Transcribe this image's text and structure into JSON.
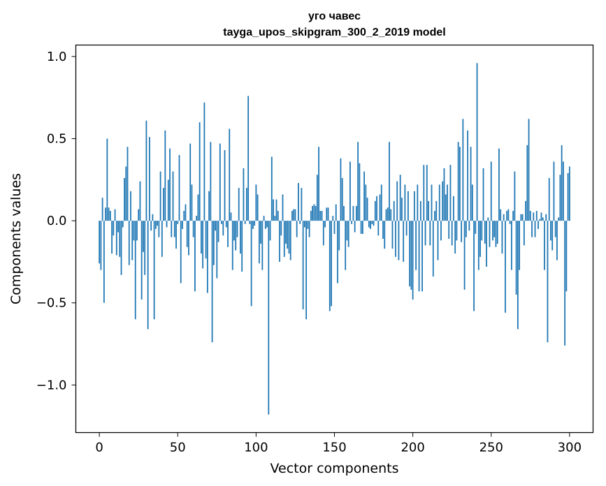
{
  "chart_data": {
    "type": "bar",
    "title": "уго чавес",
    "subtitle": "tayga_upos_skipgram_300_2_2019 model",
    "xlabel": "Vector components",
    "ylabel": "Components values",
    "xlim": [
      -15,
      315
    ],
    "ylim": [
      -1.29,
      1.07
    ],
    "xticks": [
      0,
      50,
      100,
      150,
      200,
      250,
      300
    ],
    "xtick_labels": [
      "0",
      "50",
      "100",
      "150",
      "200",
      "250",
      "300"
    ],
    "yticks": [
      -1.0,
      -0.5,
      0.0,
      0.5,
      1.0
    ],
    "ytick_labels": [
      "−1.0",
      "−0.5",
      "0.0",
      "0.5",
      "1.0"
    ],
    "bar_color": "#1f77b4",
    "grid": false,
    "values": [
      -0.26,
      -0.3,
      0.14,
      -0.5,
      0.08,
      0.5,
      0.08,
      0.06,
      -0.2,
      -0.09,
      0.07,
      -0.21,
      -0.07,
      -0.22,
      -0.33,
      -0.04,
      0.26,
      0.33,
      0.45,
      -0.27,
      0.18,
      -0.24,
      -0.12,
      -0.6,
      -0.12,
      0.07,
      0.24,
      -0.48,
      -0.19,
      -0.33,
      0.61,
      -0.66,
      0.51,
      -0.06,
      0.04,
      -0.6,
      -0.05,
      -0.03,
      -0.1,
      0.3,
      -0.22,
      0.2,
      0.55,
      -0.04,
      0.25,
      0.44,
      -0.1,
      0.3,
      -0.1,
      -0.17,
      -0.02,
      0.4,
      -0.38,
      -0.05,
      0.06,
      0.1,
      -0.16,
      -0.21,
      0.47,
      0.22,
      -0.1,
      -0.43,
      0.03,
      0.16,
      0.6,
      -0.2,
      -0.29,
      0.72,
      -0.23,
      -0.44,
      0.18,
      0.48,
      -0.74,
      -0.27,
      -0.06,
      -0.35,
      -0.13,
      0.47,
      -0.02,
      -0.09,
      0.43,
      -0.04,
      -0.16,
      0.56,
      0.05,
      -0.3,
      -0.12,
      -0.18,
      -0.1,
      0.2,
      -0.2,
      -0.31,
      0.32,
      -0.02,
      0.2,
      0.76,
      -0.02,
      -0.52,
      -0.05,
      -0.03,
      0.22,
      0.16,
      -0.26,
      -0.14,
      -0.3,
      0.03,
      -0.05,
      -0.04,
      -1.18,
      -0.12,
      0.39,
      0.13,
      0.03,
      0.13,
      0.06,
      -0.25,
      -0.09,
      0.16,
      -0.22,
      -0.14,
      -0.17,
      -0.2,
      -0.24,
      0.06,
      0.07,
      0.07,
      -0.1,
      0.23,
      -0.02,
      0.2,
      -0.54,
      -0.04,
      -0.6,
      -0.05,
      -0.1,
      0.06,
      0.09,
      0.1,
      0.09,
      0.28,
      0.45,
      0.06,
      0.06,
      -0.15,
      -0.04,
      0.08,
      0.08,
      -0.55,
      -0.52,
      0.03,
      -0.08,
      0.1,
      -0.38,
      -0.18,
      0.38,
      0.26,
      0.09,
      -0.3,
      -0.12,
      -0.16,
      0.36,
      -0.02,
      0.09,
      -0.07,
      0.09,
      0.48,
      0.35,
      -0.08,
      -0.08,
      0.3,
      0.22,
      0.14,
      -0.04,
      -0.05,
      -0.02,
      -0.03,
      0.12,
      0.15,
      -0.09,
      0.16,
      0.22,
      -0.11,
      -0.17,
      0.07,
      0.08,
      0.48,
      0.07,
      -0.17,
      0.12,
      -0.22,
      0.24,
      -0.24,
      0.28,
      0.14,
      -0.25,
      0.22,
      -0.09,
      0.18,
      -0.4,
      -0.42,
      -0.48,
      0.18,
      -0.3,
      0.22,
      -0.43,
      0.12,
      -0.43,
      0.34,
      -0.15,
      0.34,
      0.12,
      -0.15,
      0.22,
      -0.34,
      0.06,
      0.12,
      -0.24,
      0.22,
      -0.12,
      0.24,
      0.32,
      0.16,
      0.22,
      -0.11,
      0.34,
      -0.15,
      0.15,
      -0.2,
      -0.12,
      0.48,
      0.45,
      -0.13,
      0.62,
      -0.42,
      -0.1,
      0.55,
      -0.06,
      0.45,
      0.22,
      -0.55,
      -0.08,
      0.96,
      -0.3,
      -0.22,
      -0.12,
      0.32,
      -0.14,
      -0.28,
      0.02,
      -0.16,
      0.36,
      -0.12,
      -0.1,
      -0.16,
      -0.14,
      0.44,
      0.07,
      -0.2,
      0.04,
      -0.56,
      0.06,
      0.07,
      -0.02,
      -0.3,
      0.06,
      0.3,
      -0.45,
      -0.66,
      -0.3,
      0.04,
      0.04,
      -0.15,
      0.12,
      0.46,
      0.62,
      0.06,
      -0.1,
      0.05,
      -0.1,
      0.06,
      -0.05,
      0.01,
      0.05,
      0.02,
      -0.3,
      0.04,
      -0.74,
      0.26,
      -0.12,
      -0.18,
      0.36,
      -0.1,
      -0.24,
      0.02,
      0.28,
      0.46,
      0.36,
      -0.76,
      -0.43,
      0.29,
      0.33
    ]
  }
}
